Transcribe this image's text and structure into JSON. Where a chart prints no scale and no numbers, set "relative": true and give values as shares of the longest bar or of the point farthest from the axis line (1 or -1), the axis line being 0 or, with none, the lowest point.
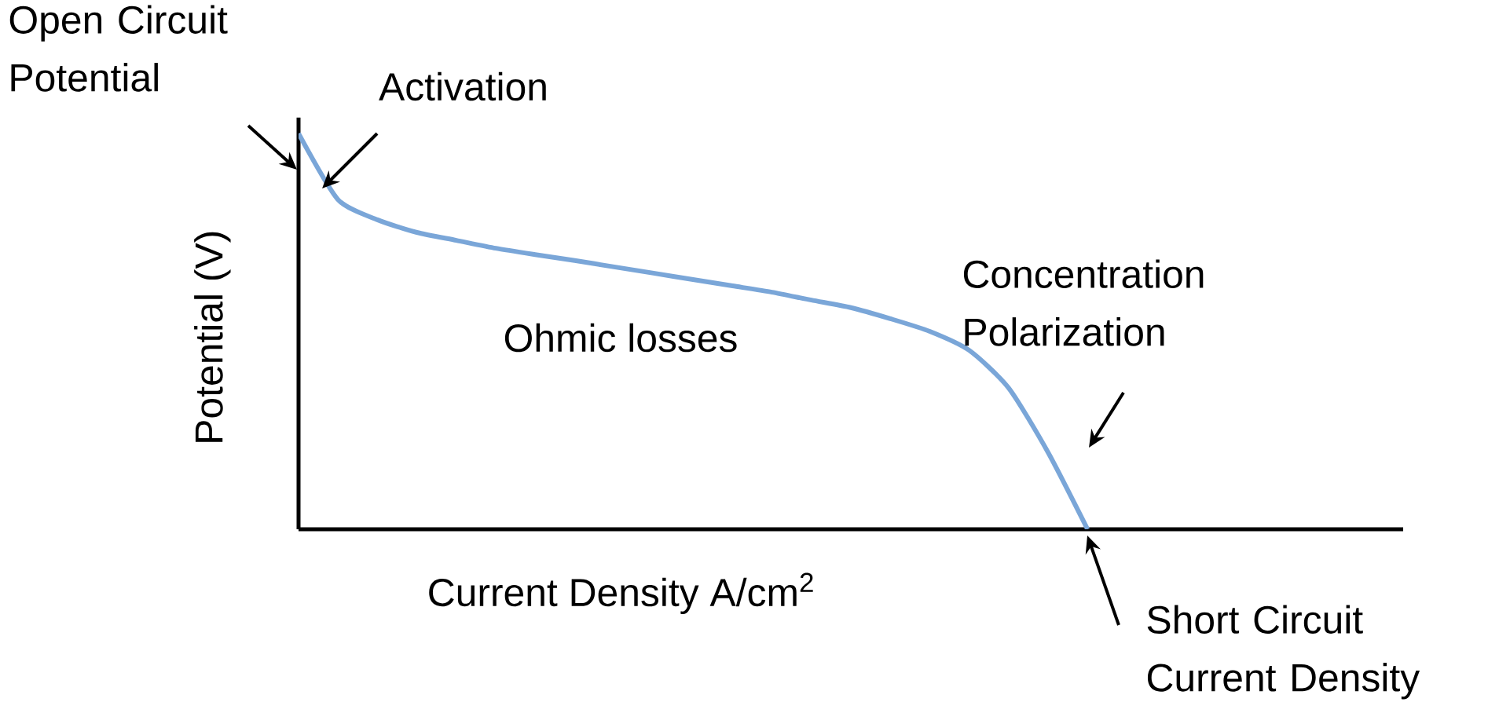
{
  "chart_data": {
    "type": "line",
    "xlabel": "Current Density A/cm$^{2}$",
    "ylabel": "Potential (V)",
    "categories": [
      null,
      null,
      null,
      null,
      null,
      null,
      null,
      null,
      null,
      null,
      null,
      null,
      null,
      null,
      null,
      null,
      null,
      null,
      null,
      null,
      null,
      null,
      null,
      null,
      null,
      null,
      null,
      null,
      null
    ],
    "values": [
      1.0,
      0.833,
      0.782,
      0.75,
      0.73,
      0.71,
      0.694,
      0.679,
      0.663,
      0.647,
      0.631,
      0.615,
      0.599,
      0.579,
      0.56,
      0.532,
      0.5,
      0.452,
      0.357,
      0.194,
      0,
      null,
      null,
      null,
      null,
      null,
      null,
      null,
      null
    ],
    "color": "#7aa6d8",
    "relative": true,
    "annotations": [
      "Open Circuit Potential",
      "Activation",
      "Ohmic losses",
      "Concentration Polarization",
      "Short Circuit Current Density"
    ]
  }
}
